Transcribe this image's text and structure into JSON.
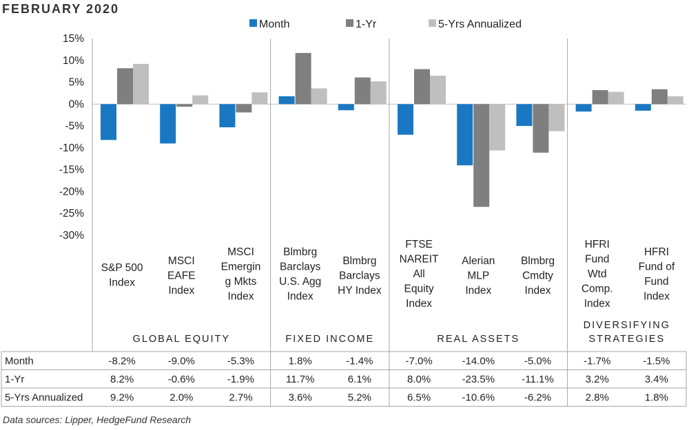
{
  "title": "FEBRUARY 2020",
  "source_note": "Data sources: Lipper, HedgeFund Research",
  "colors": {
    "month": "#1a78c2",
    "one_yr": "#7f7f7f",
    "five_yr": "#bfbfbf",
    "grid": "#a6a6a6"
  },
  "chart_data": {
    "type": "bar",
    "title": "FEBRUARY 2020",
    "ylim": [
      -30,
      15
    ],
    "y_ticks": [
      15,
      10,
      5,
      0,
      -5,
      -10,
      -15,
      -20,
      -25,
      -30
    ],
    "y_tick_labels": [
      "15%",
      "10%",
      "5%",
      "0%",
      "-5%",
      "-10%",
      "-15%",
      "-20%",
      "-25%",
      "-30%"
    ],
    "legend": {
      "placement": "top-center"
    },
    "categories": [
      {
        "lines": [
          "S&P 500",
          "Index"
        ],
        "group": 0
      },
      {
        "lines": [
          "MSCI",
          "EAFE",
          "Index"
        ],
        "group": 0
      },
      {
        "lines": [
          "MSCI",
          "Emergin",
          "g Mkts",
          "Index"
        ],
        "group": 0
      },
      {
        "lines": [
          "Blmbrg",
          "Barclays",
          "U.S. Agg",
          "Index"
        ],
        "group": 1
      },
      {
        "lines": [
          "Blmbrg",
          "Barclays",
          "HY Index"
        ],
        "group": 1
      },
      {
        "lines": [
          "FTSE",
          "NAREIT",
          "All",
          "Equity",
          "Index"
        ],
        "group": 2
      },
      {
        "lines": [
          "Alerian",
          "MLP",
          "Index"
        ],
        "group": 2
      },
      {
        "lines": [
          "Blmbrg",
          "Cmdty",
          "Index"
        ],
        "group": 2
      },
      {
        "lines": [
          "HFRI",
          "Fund",
          "Wtd",
          "Comp.",
          "Index"
        ],
        "group": 3
      },
      {
        "lines": [
          "HFRI",
          "Fund of",
          "Fund",
          "Index"
        ],
        "group": 3
      }
    ],
    "groups": [
      {
        "lines": [
          "GLOBAL EQUITY"
        ]
      },
      {
        "lines": [
          "FIXED INCOME"
        ]
      },
      {
        "lines": [
          "REAL ASSETS"
        ]
      },
      {
        "lines": [
          "DIVERSIFYING",
          "STRATEGIES"
        ]
      }
    ],
    "series": [
      {
        "name": "Month",
        "values": [
          -8.2,
          -9.0,
          -5.3,
          1.8,
          -1.4,
          -7.0,
          -14.0,
          -5.0,
          -1.7,
          -1.5
        ],
        "labels": [
          "-8.2%",
          "-9.0%",
          "-5.3%",
          "1.8%",
          "-1.4%",
          "-7.0%",
          "-14.0%",
          "-5.0%",
          "-1.7%",
          "-1.5%"
        ]
      },
      {
        "name": "1-Yr",
        "values": [
          8.2,
          -0.6,
          -1.9,
          11.7,
          6.1,
          8.0,
          -23.5,
          -11.1,
          3.2,
          3.4
        ],
        "labels": [
          "8.2%",
          "-0.6%",
          "-1.9%",
          "11.7%",
          "6.1%",
          "8.0%",
          "-23.5%",
          "-11.1%",
          "3.2%",
          "3.4%"
        ]
      },
      {
        "name": "5-Yrs Annualized",
        "values": [
          9.2,
          2.0,
          2.7,
          3.6,
          5.2,
          6.5,
          -10.6,
          -6.2,
          2.8,
          1.8
        ],
        "labels": [
          "9.2%",
          "2.0%",
          "2.7%",
          "3.6%",
          "5.2%",
          "6.5%",
          "-10.6%",
          "-6.2%",
          "2.8%",
          "1.8%"
        ]
      }
    ]
  }
}
